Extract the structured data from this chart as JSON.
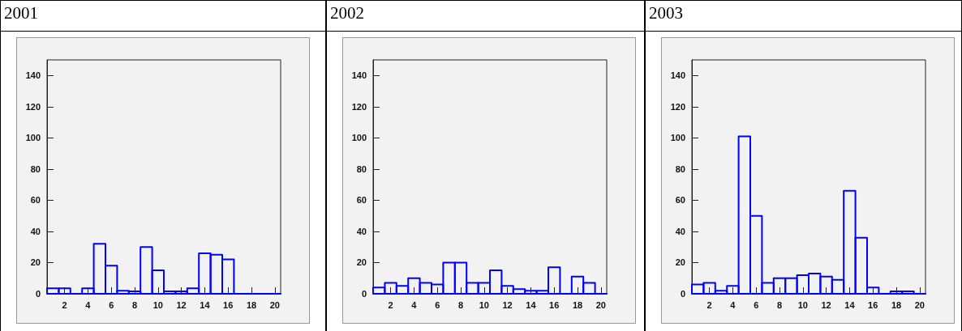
{
  "chart_data": [
    {
      "type": "histogram",
      "title": "2001",
      "bins": [
        0.5,
        1.5,
        2.5,
        3.5,
        4.5,
        5.5,
        6.5,
        7.5,
        8.5,
        9.5,
        10.5,
        11.5,
        12.5,
        13.5,
        14.5,
        15.5,
        16.5,
        17.5,
        18.5,
        19.5,
        20.5
      ],
      "values": [
        3.5,
        3.5,
        0,
        3.5,
        32,
        18,
        2,
        1.5,
        30,
        15,
        1.5,
        1.5,
        3.5,
        26,
        25,
        22,
        0,
        0,
        0,
        0
      ],
      "color": "#0000ff",
      "xlim": [
        0.5,
        20.5
      ],
      "xticks": [
        2,
        4,
        6,
        8,
        10,
        12,
        14,
        16,
        18,
        20
      ],
      "ylim": [
        0,
        150
      ],
      "yticks": [
        0,
        20,
        40,
        60,
        80,
        100,
        120,
        140
      ],
      "grid": false
    },
    {
      "type": "histogram",
      "title": "2002",
      "bins": [
        0.5,
        1.5,
        2.5,
        3.5,
        4.5,
        5.5,
        6.5,
        7.5,
        8.5,
        9.5,
        10.5,
        11.5,
        12.5,
        13.5,
        14.5,
        15.5,
        16.5,
        17.5,
        18.5,
        19.5,
        20.5
      ],
      "values": [
        4,
        7,
        5,
        10,
        7,
        6,
        20,
        20,
        7,
        7,
        15,
        5,
        3,
        2,
        2,
        17,
        0,
        11,
        7,
        0
      ],
      "color": "#0000ff",
      "xlim": [
        0.5,
        20.5
      ],
      "xticks": [
        2,
        4,
        6,
        8,
        10,
        12,
        14,
        16,
        18,
        20
      ],
      "ylim": [
        0,
        150
      ],
      "yticks": [
        0,
        20,
        40,
        60,
        80,
        100,
        120,
        140
      ],
      "grid": false
    },
    {
      "type": "histogram",
      "title": "2003",
      "bins": [
        0.5,
        1.5,
        2.5,
        3.5,
        4.5,
        5.5,
        6.5,
        7.5,
        8.5,
        9.5,
        10.5,
        11.5,
        12.5,
        13.5,
        14.5,
        15.5,
        16.5,
        17.5,
        18.5,
        19.5,
        20.5
      ],
      "values": [
        6,
        7,
        2,
        5,
        101,
        50,
        7,
        10,
        10,
        12,
        13,
        11,
        9,
        66,
        36,
        4,
        0,
        1.5,
        1.5,
        0
      ],
      "color": "#0000ff",
      "xlim": [
        0.5,
        20.5
      ],
      "xticks": [
        2,
        4,
        6,
        8,
        10,
        12,
        14,
        16,
        18,
        20
      ],
      "ylim": [
        0,
        150
      ],
      "yticks": [
        0,
        20,
        40,
        60,
        80,
        100,
        120,
        140
      ],
      "grid": false
    }
  ]
}
